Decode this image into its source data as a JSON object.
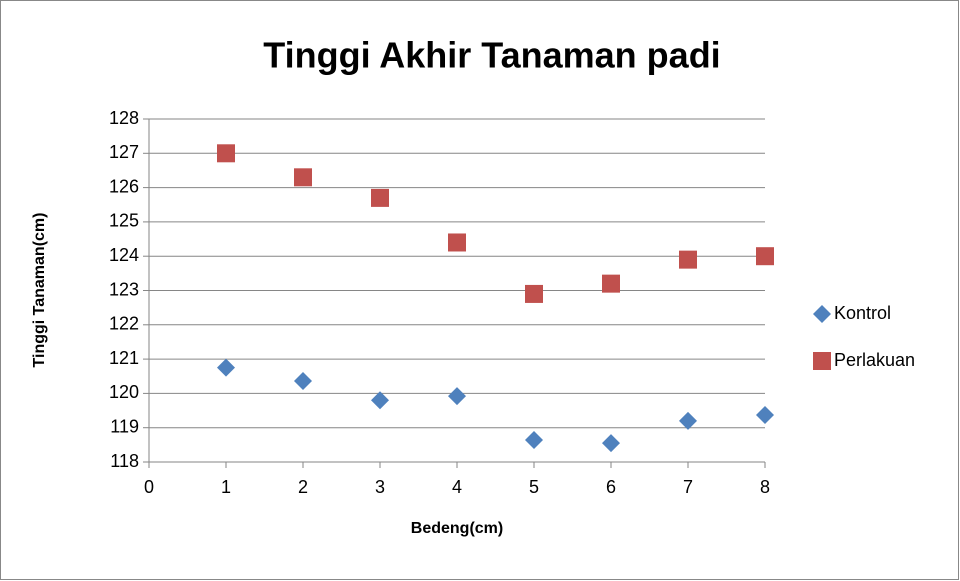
{
  "chart_data": {
    "type": "scatter",
    "title": "Tinggi Akhir Tanaman padi",
    "x_label": "Bedeng(cm)",
    "y_label": "Tinggi Tanaman(cm)",
    "x": [
      1,
      2,
      3,
      4,
      5,
      6,
      7,
      8
    ],
    "series": [
      {
        "name": "Kontrol",
        "color": "#4f81bd",
        "marker": "diamond",
        "values": [
          120.75,
          120.36,
          119.8,
          119.92,
          118.64,
          118.55,
          119.2,
          119.37
        ]
      },
      {
        "name": "Perlakuan",
        "color": "#c0504d",
        "marker": "square",
        "values": [
          127.0,
          126.3,
          125.7,
          124.4,
          122.9,
          123.2,
          123.9,
          124.0
        ]
      }
    ],
    "xlim": [
      0,
      8
    ],
    "xticks": [
      0,
      1,
      2,
      3,
      4,
      5,
      6,
      7,
      8
    ],
    "ylim": [
      118,
      128
    ],
    "yticks": [
      118,
      119,
      120,
      121,
      122,
      123,
      124,
      125,
      126,
      127,
      128
    ],
    "grid": true,
    "legend": "right"
  }
}
